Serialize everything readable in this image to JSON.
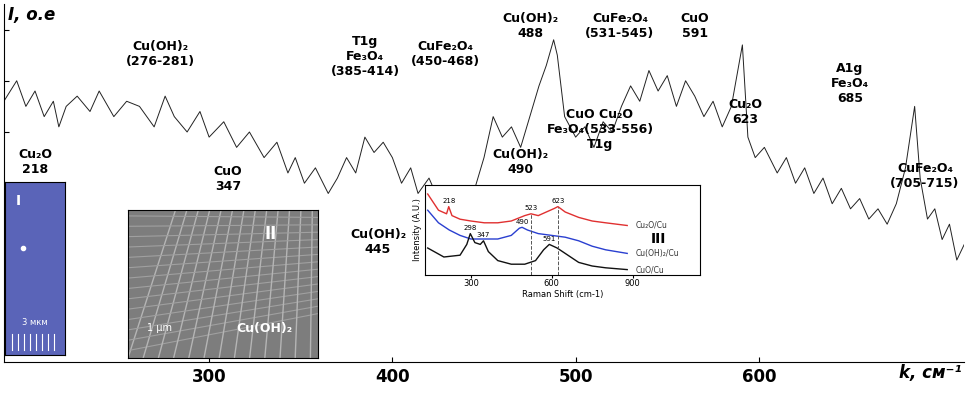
{
  "chart_data": [
    {
      "type": "line",
      "x_label": "k, см⁻¹",
      "y_label": "I, о.е",
      "color": "#222222",
      "x": [
        188,
        195,
        200,
        205,
        210,
        215,
        218,
        222,
        228,
        235,
        240,
        248,
        255,
        262,
        270,
        276,
        281,
        288,
        295,
        300,
        308,
        315,
        322,
        330,
        337,
        343,
        347,
        352,
        358,
        365,
        370,
        375,
        380,
        385,
        390,
        395,
        400,
        405,
        410,
        414,
        420,
        426,
        432,
        438,
        442,
        445,
        450,
        455,
        460,
        465,
        470,
        475,
        480,
        484,
        488,
        490,
        494,
        500,
        505,
        510,
        515,
        520,
        525,
        530,
        535,
        540,
        545,
        550,
        555,
        560,
        565,
        570,
        575,
        580,
        585,
        588,
        591,
        594,
        598,
        603,
        610,
        615,
        620,
        625,
        630,
        635,
        640,
        645,
        650,
        655,
        660,
        665,
        670,
        675,
        680,
        685,
        688,
        692,
        696,
        700,
        704,
        708,
        712
      ],
      "values": [
        255,
        275,
        250,
        265,
        240,
        255,
        230,
        250,
        260,
        245,
        265,
        240,
        255,
        250,
        230,
        260,
        240,
        225,
        245,
        220,
        235,
        210,
        225,
        200,
        215,
        185,
        200,
        175,
        190,
        165,
        180,
        200,
        185,
        220,
        205,
        215,
        200,
        175,
        190,
        165,
        180,
        155,
        165,
        145,
        160,
        170,
        200,
        240,
        220,
        230,
        210,
        240,
        270,
        290,
        315,
        300,
        240,
        220,
        230,
        210,
        235,
        225,
        250,
        270,
        255,
        285,
        265,
        280,
        250,
        275,
        260,
        240,
        255,
        230,
        250,
        280,
        310,
        220,
        200,
        210,
        185,
        200,
        175,
        190,
        165,
        180,
        155,
        170,
        150,
        160,
        140,
        150,
        135,
        155,
        190,
        250,
        180,
        140,
        150,
        120,
        135,
        100,
        115
      ],
      "xlim": [
        188,
        712
      ],
      "ylim": [
        0,
        350
      ],
      "xticks": [
        300,
        400,
        500,
        600
      ],
      "yticks": [
        125,
        175,
        225,
        275,
        325
      ],
      "tick_labels": "x",
      "annotations": [
        "Cu₂O\n218",
        "Cu(OH)₂\n(276-281)",
        "T1g\nFe₃O₄\n(385-414)",
        "CuO\n347",
        "Cu(OH)₂\n445",
        "CuFe₂O₄\n(450-468)",
        "Cu(OH)₂\n488",
        "Cu(OH)₂\n490",
        "CuFe₂O₄\n(531-545)",
        "CuO\n591",
        "CuO Cu₂O\nFe₃O₄(533-556)\nT1g",
        "Cu₂O\n623",
        "A1g\nFe₃O₄\n685",
        "CuFe₂O₄\n(705-715)"
      ]
    },
    {
      "type": "line",
      "title": "III",
      "x_label": "Raman Shift (cm-1)",
      "y_label": "Intensity (A.U.)",
      "xlim": [
        130,
        1150
      ],
      "ylim": [
        0,
        100
      ],
      "xticks": [
        300,
        600,
        900
      ],
      "yticks": [],
      "tick_labels": "x",
      "dashed_lines": [
        523,
        623
      ],
      "series": [
        {
          "name": "Cu₂O/Cu",
          "color": "#e03030",
          "x": [
            140,
            180,
            210,
            218,
            230,
            260,
            300,
            350,
            400,
            450,
            500,
            523,
            550,
            580,
            610,
            623,
            650,
            700,
            750,
            800,
            880
          ],
          "values": [
            90,
            72,
            68,
            76,
            66,
            62,
            60,
            58,
            58,
            60,
            66,
            68,
            66,
            70,
            74,
            76,
            70,
            64,
            60,
            58,
            55
          ],
          "peaks": [
            218,
            523,
            623
          ]
        },
        {
          "name": "Cu(OH)₂/Cu",
          "color": "#2a3fd0",
          "x": [
            140,
            180,
            220,
            260,
            300,
            350,
            400,
            450,
            480,
            490,
            510,
            550,
            600,
            650,
            700,
            750,
            800,
            880
          ],
          "values": [
            72,
            58,
            50,
            44,
            40,
            40,
            40,
            44,
            52,
            53,
            50,
            46,
            44,
            42,
            38,
            32,
            28,
            24
          ],
          "peaks": [
            490
          ]
        },
        {
          "name": "CuO/Cu",
          "color": "#111111",
          "x": [
            140,
            200,
            260,
            285,
            298,
            315,
            335,
            347,
            365,
            400,
            450,
            500,
            540,
            570,
            591,
            620,
            660,
            700,
            750,
            800,
            880
          ],
          "values": [
            30,
            20,
            22,
            34,
            46,
            36,
            34,
            38,
            26,
            16,
            12,
            12,
            16,
            28,
            34,
            30,
            22,
            14,
            10,
            8,
            6
          ],
          "peaks": [
            298,
            347,
            591
          ]
        }
      ]
    }
  ],
  "images": [
    {
      "label": "I",
      "scale_bar": "3 мкм"
    },
    {
      "label": "II",
      "scale_bar": "1 μm",
      "caption": "Cu(OH)₂"
    }
  ]
}
